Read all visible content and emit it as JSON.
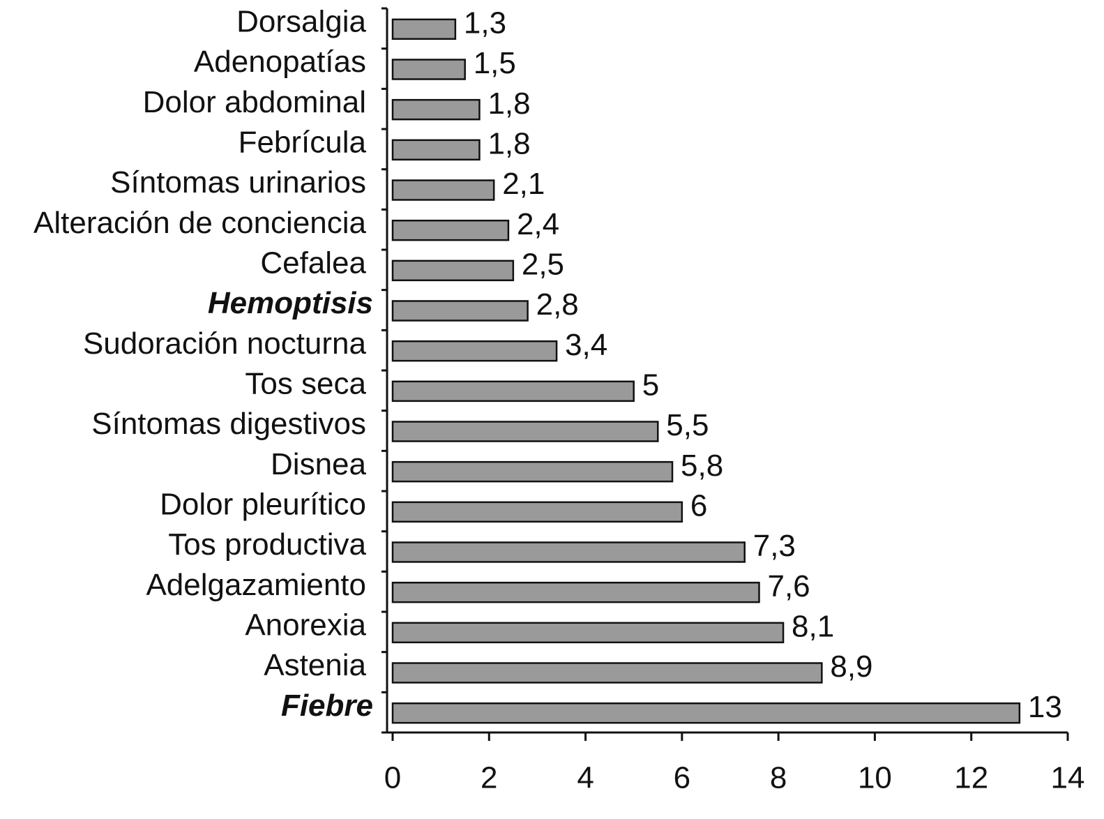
{
  "chart_data": {
    "type": "hbar",
    "categories": [
      "Dorsalgia",
      "Adenopatías",
      "Dolor abdominal",
      "Febrícula",
      "Síntomas urinarios",
      "Alteración de conciencia",
      "Cefalea",
      "Hemoptisis",
      "Sudoración nocturna",
      "Tos seca",
      "Síntomas digestivos",
      "Disnea",
      "Dolor pleurítico",
      "Tos productiva",
      "Adelgazamiento",
      "Anorexia",
      "Astenia",
      "Fiebre"
    ],
    "values": [
      1.3,
      1.5,
      1.8,
      1.8,
      2.1,
      2.4,
      2.5,
      2.8,
      3.4,
      5,
      5.5,
      5.8,
      6,
      7.3,
      7.6,
      8.1,
      8.9,
      13
    ],
    "value_labels": [
      "1,3",
      "1,5",
      "1,8",
      "1,8",
      "2,1",
      "2,4",
      "2,5",
      "2,8",
      "3,4",
      "5",
      "5,5",
      "5,8",
      "6",
      "7,3",
      "7,6",
      "8,1",
      "8,9",
      "13"
    ],
    "emphasized_categories": [
      7,
      17
    ],
    "color": "#9a9a9a",
    "xlim": [
      0,
      14
    ],
    "xticks": [
      0,
      2,
      4,
      6,
      8,
      10,
      12,
      14
    ]
  }
}
